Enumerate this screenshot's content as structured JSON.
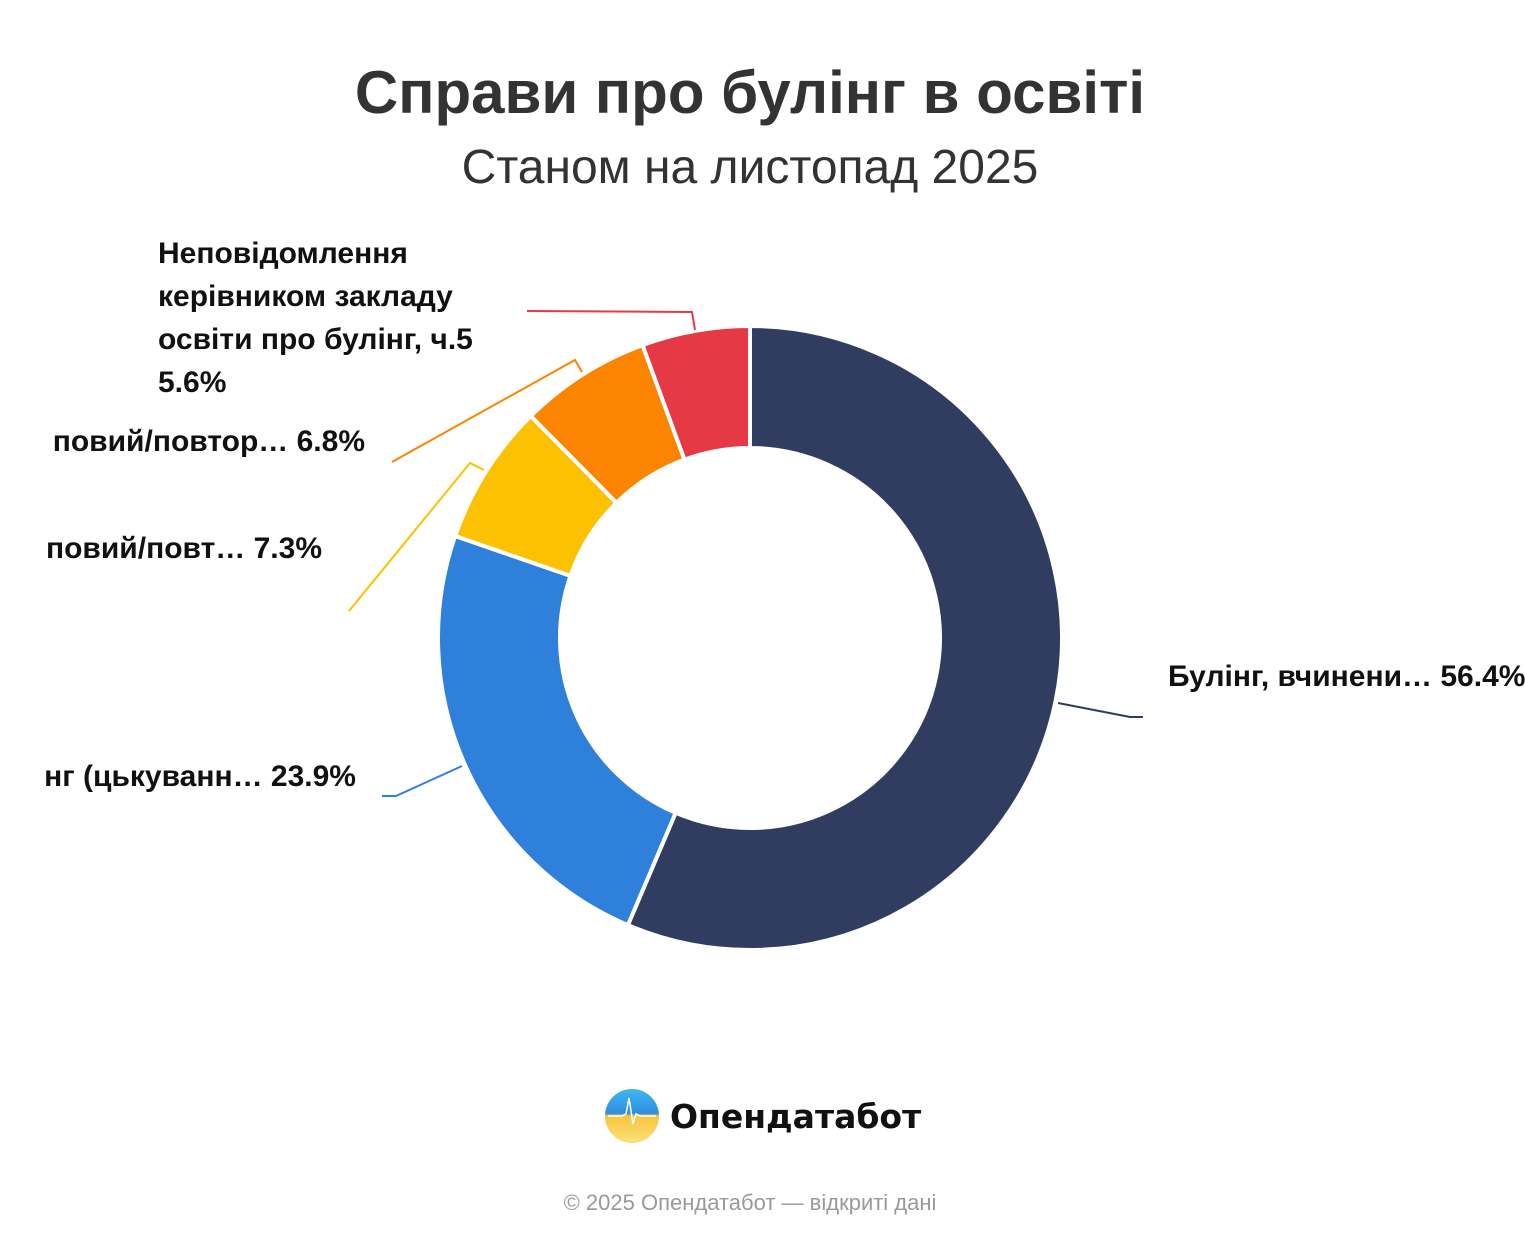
{
  "chart_data": {
    "type": "pie",
    "variant": "donut",
    "title": "Справи про булінг в освіті",
    "subtitle": "Станом на листопад 2025",
    "slices": [
      {
        "label": "Булінг, вчинени…",
        "value": 56.4,
        "value_text": "56.4%",
        "color": "#313d60"
      },
      {
        "label": "нг (цькуванн…",
        "value": 23.9,
        "value_text": "23.9%",
        "color": "#2f80db"
      },
      {
        "label": "повий/повт…",
        "value": 7.3,
        "value_text": "7.3%",
        "color": "#fcc100"
      },
      {
        "label": "повий/повтор…",
        "value": 6.8,
        "value_text": "6.8%",
        "color": "#fb8500"
      },
      {
        "label": "Неповідомлення керівником закладу освіти про булінг, ч.5",
        "value": 5.6,
        "value_text": "5.6%",
        "color": "#e63946"
      }
    ]
  },
  "brand": {
    "name": "Опендатабот"
  },
  "footer": {
    "text": "© 2025 Опендатабот — відкриті дані"
  }
}
